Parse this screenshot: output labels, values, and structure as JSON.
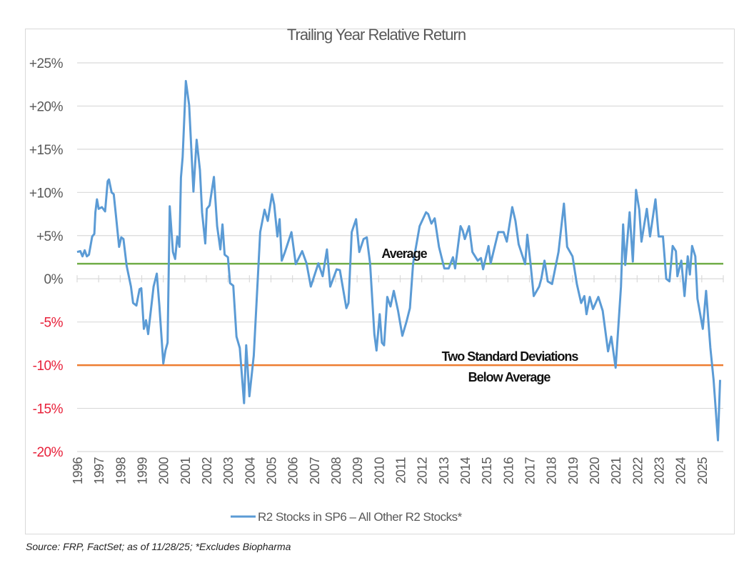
{
  "chart_data": {
    "type": "line",
    "title": "Trailing Year Relative Return",
    "xlabel": "",
    "ylabel": "",
    "ylim": [
      -20,
      25
    ],
    "xlim": [
      1996,
      2026
    ],
    "grid": true,
    "legend_placement": "bottom-center",
    "y_ticks": [
      {
        "value": 25,
        "label": "+25%",
        "color": "#595959"
      },
      {
        "value": 20,
        "label": "+20%",
        "color": "#595959"
      },
      {
        "value": 15,
        "label": "+15%",
        "color": "#595959"
      },
      {
        "value": 10,
        "label": "+10%",
        "color": "#595959"
      },
      {
        "value": 5,
        "label": "+5%",
        "color": "#595959"
      },
      {
        "value": 0,
        "label": "0%",
        "color": "#595959"
      },
      {
        "value": -5,
        "label": "-5%",
        "color": "#e8213a"
      },
      {
        "value": -10,
        "label": "-10%",
        "color": "#e8213a"
      },
      {
        "value": -15,
        "label": "-15%",
        "color": "#e8213a"
      },
      {
        "value": -20,
        "label": "-20%",
        "color": "#e8213a"
      }
    ],
    "x_tick_labels": [
      "1996",
      "1997",
      "1998",
      "1999",
      "2000",
      "2001",
      "2002",
      "2003",
      "2004",
      "2005",
      "2006",
      "2007",
      "2008",
      "2009",
      "2010",
      "2011",
      "2012",
      "2013",
      "2014",
      "2015",
      "2016",
      "2017",
      "2018",
      "2019",
      "2020",
      "2021",
      "2022",
      "2023",
      "2024",
      "2025"
    ],
    "series": [
      {
        "name": "R2 Stocks in SP6 – All Other R2 Stocks*",
        "color": "#5b9bd5",
        "x": [
          1996.0,
          1996.15,
          1996.25,
          1996.35,
          1996.45,
          1996.55,
          1996.7,
          1996.8,
          1996.85,
          1996.92,
          1997.0,
          1997.15,
          1997.3,
          1997.42,
          1997.48,
          1997.6,
          1997.7,
          1997.8,
          1997.95,
          1998.05,
          1998.15,
          1998.3,
          1998.5,
          1998.6,
          1998.75,
          1998.9,
          1998.98,
          1999.1,
          1999.2,
          1999.3,
          1999.55,
          1999.7,
          1999.82,
          2000.0,
          2000.1,
          2000.2,
          2000.3,
          2000.45,
          2000.55,
          2000.65,
          2000.75,
          2000.82,
          2000.9,
          2001.05,
          2001.2,
          2001.4,
          2001.55,
          2001.7,
          2001.8,
          2001.95,
          2002.02,
          2002.15,
          2002.35,
          2002.5,
          2002.65,
          2002.75,
          2002.85,
          2003.0,
          2003.1,
          2003.25,
          2003.4,
          2003.55,
          2003.75,
          2003.85,
          2004.0,
          2004.2,
          2004.4,
          2004.5,
          2004.7,
          2004.85,
          2005.05,
          2005.15,
          2005.3,
          2005.4,
          2005.5,
          2005.65,
          2005.95,
          2006.15,
          2006.45,
          2006.65,
          2006.85,
          2007.2,
          2007.4,
          2007.6,
          2007.75,
          2008.05,
          2008.2,
          2008.5,
          2008.6,
          2008.75,
          2008.95,
          2009.1,
          2009.3,
          2009.45,
          2009.6,
          2009.8,
          2009.9,
          2010.05,
          2010.15,
          2010.25,
          2010.4,
          2010.55,
          2010.7,
          2010.9,
          2011.1,
          2011.3,
          2011.45,
          2011.6,
          2011.9,
          2012.2,
          2012.3,
          2012.45,
          2012.6,
          2012.8,
          2013.05,
          2013.25,
          2013.45,
          2013.55,
          2013.8,
          2013.9,
          2014.0,
          2014.2,
          2014.35,
          2014.6,
          2014.75,
          2014.85,
          2015.1,
          2015.2,
          2015.55,
          2015.8,
          2015.95,
          2016.2,
          2016.35,
          2016.5,
          2016.8,
          2016.9,
          2017.05,
          2017.2,
          2017.45,
          2017.55,
          2017.7,
          2017.85,
          2018.05,
          2018.35,
          2018.6,
          2018.75,
          2019.0,
          2019.2,
          2019.4,
          2019.55,
          2019.65,
          2019.8,
          2019.95,
          2020.2,
          2020.4,
          2020.65,
          2020.8,
          2021.0,
          2021.25,
          2021.35,
          2021.45,
          2021.65,
          2021.8,
          2021.95,
          2022.1,
          2022.2,
          2022.45,
          2022.6,
          2022.85,
          2023.0,
          2023.2,
          2023.35,
          2023.5,
          2023.65,
          2023.8,
          2023.87,
          2024.05,
          2024.2,
          2024.35,
          2024.45,
          2024.55,
          2024.7,
          2024.8,
          2025.05,
          2025.2,
          2025.4,
          2025.55,
          2025.75,
          2025.85
        ],
        "values": [
          3.1,
          3.2,
          2.6,
          3.3,
          2.6,
          2.8,
          4.9,
          5.2,
          7.7,
          9.2,
          8.1,
          8.3,
          7.8,
          11.3,
          11.5,
          10.0,
          9.8,
          7.4,
          3.7,
          4.8,
          4.6,
          1.5,
          -0.9,
          -2.8,
          -3.1,
          -1.2,
          -1.1,
          -5.8,
          -4.8,
          -6.4,
          -0.9,
          0.6,
          -3.1,
          -9.8,
          -8.3,
          -7.4,
          8.4,
          3.1,
          2.3,
          4.9,
          3.7,
          11.7,
          14.1,
          22.9,
          20.1,
          10.1,
          16.1,
          12.6,
          7.7,
          4.1,
          8.1,
          8.5,
          11.8,
          6.1,
          3.4,
          6.3,
          2.8,
          2.5,
          -0.5,
          -0.8,
          -6.7,
          -8.0,
          -14.4,
          -7.7,
          -13.6,
          -8.9,
          0.6,
          5.4,
          8.0,
          6.7,
          9.8,
          8.6,
          4.9,
          6.9,
          2.1,
          3.1,
          5.4,
          1.7,
          3.2,
          1.8,
          -0.9,
          1.8,
          0.3,
          3.4,
          -0.9,
          1.1,
          1.0,
          -3.4,
          -2.8,
          5.4,
          6.9,
          3.1,
          4.6,
          4.8,
          1.8,
          -6.4,
          -8.3,
          -4.1,
          -7.4,
          -7.7,
          -2.1,
          -3.2,
          -1.4,
          -3.7,
          -6.6,
          -4.9,
          -3.4,
          1.8,
          6.1,
          7.7,
          7.5,
          6.4,
          7.0,
          3.7,
          1.2,
          1.2,
          2.5,
          1.2,
          6.1,
          5.6,
          4.6,
          6.1,
          3.1,
          2.1,
          2.4,
          1.1,
          3.8,
          1.8,
          5.4,
          5.4,
          4.3,
          8.3,
          6.7,
          4.0,
          1.7,
          5.1,
          1.8,
          -2.0,
          -0.9,
          0.0,
          2.1,
          -0.3,
          -0.6,
          3.1,
          8.7,
          3.7,
          2.6,
          -0.6,
          -2.8,
          -2.0,
          -4.1,
          -2.1,
          -3.5,
          -2.1,
          -3.7,
          -8.4,
          -6.7,
          -10.3,
          -0.9,
          6.3,
          1.6,
          7.7,
          2.0,
          10.3,
          8.0,
          4.3,
          8.1,
          4.9,
          9.2,
          4.9,
          4.9,
          0.0,
          -0.3,
          3.8,
          3.2,
          0.3,
          2.1,
          -2.0,
          2.6,
          0.5,
          3.8,
          2.6,
          -2.3,
          -5.8,
          -1.4,
          -8.0,
          -11.7,
          -18.7,
          -11.7
        ]
      }
    ],
    "reference_lines": [
      {
        "name": "average",
        "value": 1.75,
        "color": "#70ad47",
        "label": "Average"
      },
      {
        "name": "two-std-below",
        "value": -10,
        "color": "#ed7d31",
        "label_line1": "Two Standard Deviations",
        "label_line2": "Below Average"
      }
    ]
  },
  "source_note": "Source: FRP, FactSet; as of 11/28/25; *Excludes Biopharma"
}
